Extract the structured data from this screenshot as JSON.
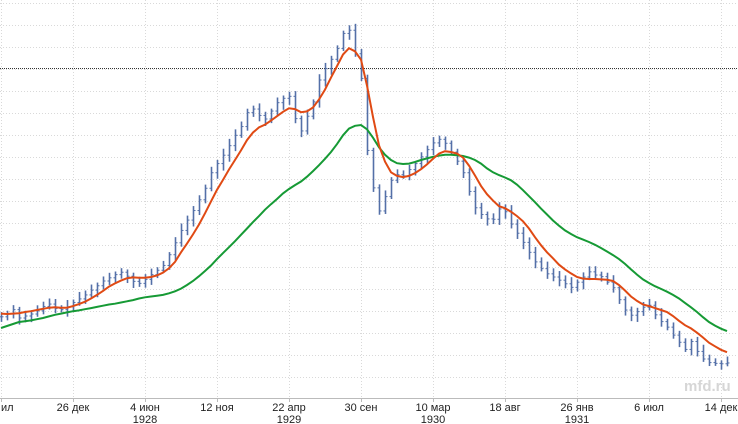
{
  "watermark": "mfd.ru",
  "chart_data": {
    "type": "line",
    "title": "",
    "xlabel": "",
    "ylabel": "",
    "grid": true,
    "legend": "none",
    "x_ticks": [
      {
        "label": "ил",
        "year": "",
        "index": 0
      },
      {
        "label": "26 дек",
        "year": "",
        "index": 12
      },
      {
        "label": "4 июн",
        "year": "1928",
        "index": 24
      },
      {
        "label": "12 ноя",
        "year": "",
        "index": 36
      },
      {
        "label": "22 апр",
        "year": "1929",
        "index": 48
      },
      {
        "label": "30 сен",
        "year": "",
        "index": 60
      },
      {
        "label": "10 мар",
        "year": "1930",
        "index": 72
      },
      {
        "label": "18 авг",
        "year": "",
        "index": 84
      },
      {
        "label": "26 янв",
        "year": "1931",
        "index": 96
      },
      {
        "label": "6 июл",
        "year": "",
        "index": 108
      },
      {
        "label": "14 дек",
        "year": "",
        "index": 120
      }
    ],
    "y_range": [
      0,
      100
    ],
    "reference_line": 83,
    "price": [
      20.4,
      21.2,
      22.2,
      20.1,
      20.6,
      21.1,
      21.9,
      23.0,
      23.6,
      22.5,
      22.2,
      22.9,
      24.0,
      24.9,
      25.9,
      27.1,
      28.2,
      29.4,
      30.2,
      31.0,
      31.6,
      30.6,
      29.3,
      28.8,
      29.8,
      31.0,
      32.1,
      33.3,
      36.0,
      39.0,
      42.1,
      44.7,
      47.1,
      49.8,
      52.7,
      56.6,
      58.9,
      61.0,
      63.4,
      66.0,
      68.2,
      71.7,
      72.6,
      71.0,
      70.1,
      72.1,
      74.2,
      75.3,
      75.8,
      70.2,
      67.1,
      70.8,
      74.4,
      79.9,
      82.8,
      85.1,
      87.8,
      91.6,
      92.4,
      86.5,
      80.3,
      62.2,
      52.8,
      47.0,
      50.6,
      54.7,
      56.1,
      55.8,
      57.4,
      58.9,
      60.6,
      62.4,
      64.1,
      65.0,
      64.0,
      61.8,
      59.5,
      56.6,
      51.9,
      47.8,
      46.1,
      45.0,
      44.9,
      47.5,
      46.8,
      43.7,
      41.4,
      39.1,
      36.6,
      34.2,
      32.5,
      31.2,
      30.4,
      29.6,
      28.7,
      27.8,
      29.1,
      30.4,
      31.7,
      30.9,
      30.5,
      29.1,
      27.7,
      24.7,
      22.1,
      20.8,
      21.7,
      22.8,
      23.3,
      20.9,
      19.2,
      17.8,
      15.8,
      14.0,
      12.2,
      14.2,
      11.7,
      9.8,
      8.9,
      8.7,
      8.6,
      8.8
    ],
    "series": [
      {
        "values": [
          21.2,
          21.1,
          21.2,
          21.3,
          21.6,
          21.8,
          22.1,
          22.4,
          22.7,
          22.8,
          22.7,
          22.7,
          23.1,
          23.6,
          24.2,
          25.0,
          25.9,
          26.9,
          28.0,
          28.8,
          29.5,
          30.1,
          30.3,
          30.2,
          30.2,
          30.4,
          30.8,
          31.5,
          32.6,
          34.2,
          36.6,
          38.8,
          41.1,
          43.6,
          46.4,
          49.4,
          52.3,
          54.8,
          57.4,
          59.8,
          62.2,
          64.8,
          66.7,
          68.0,
          68.7,
          69.7,
          70.8,
          71.9,
          72.8,
          72.6,
          71.8,
          72.0,
          73.0,
          75.0,
          77.5,
          80.5,
          83.4,
          86.3,
          87.9,
          87.1,
          85.0,
          78.5,
          70.6,
          63.5,
          59.4,
          56.7,
          55.8,
          55.5,
          55.8,
          56.5,
          57.5,
          58.7,
          60.1,
          61.4,
          62.0,
          61.8,
          61.4,
          60.4,
          58.4,
          55.9,
          53.3,
          51.2,
          49.6,
          48.2,
          47.7,
          46.8,
          45.7,
          44.4,
          42.6,
          40.4,
          38.4,
          36.6,
          35.1,
          33.5,
          32.3,
          31.3,
          30.4,
          30.0,
          29.9,
          29.9,
          29.8,
          29.7,
          29.4,
          28.4,
          27.0,
          25.5,
          24.4,
          23.5,
          23.1,
          22.6,
          22.1,
          21.6,
          20.6,
          19.4,
          18.3,
          17.5,
          16.4,
          15.2,
          13.9,
          13.0,
          12.1,
          11.5
        ]
      },
      {
        "values": [
          17.6,
          18.1,
          18.6,
          19.1,
          19.3,
          19.5,
          19.8,
          20.1,
          20.5,
          20.9,
          21.2,
          21.5,
          21.8,
          22.0,
          22.3,
          22.6,
          22.9,
          23.2,
          23.5,
          23.7,
          24.0,
          24.3,
          24.6,
          25.0,
          25.3,
          25.5,
          25.7,
          25.9,
          26.3,
          26.8,
          27.5,
          28.4,
          29.4,
          30.6,
          31.9,
          33.3,
          34.9,
          36.4,
          37.9,
          39.4,
          41.0,
          42.6,
          44.2,
          45.7,
          47.3,
          48.7,
          50.0,
          51.4,
          52.5,
          53.5,
          54.4,
          55.6,
          57.0,
          58.5,
          60.1,
          61.8,
          63.8,
          66.0,
          67.7,
          68.4,
          68.6,
          67.5,
          65.4,
          63.0,
          61.1,
          59.8,
          59.0,
          58.8,
          58.9,
          59.3,
          59.8,
          60.2,
          60.6,
          60.9,
          61.1,
          61.1,
          61.0,
          60.8,
          60.4,
          59.8,
          58.9,
          57.7,
          56.7,
          56.0,
          55.4,
          54.7,
          53.6,
          52.2,
          50.7,
          49.2,
          47.6,
          46.1,
          44.6,
          43.3,
          42.1,
          41.2,
          40.4,
          39.8,
          39.2,
          38.5,
          37.7,
          36.8,
          35.9,
          34.9,
          33.7,
          32.3,
          31.0,
          29.8,
          28.9,
          28.1,
          27.4,
          26.7,
          25.9,
          25.0,
          23.9,
          22.8,
          21.6,
          20.3,
          19.1,
          18.2,
          17.4,
          16.8
        ]
      }
    ],
    "colors": {
      "price": "#5470a8",
      "fast_ma": "#e04a14",
      "slow_ma": "#169a35",
      "grid": "#d9d9d9",
      "reference": "#333333",
      "axis": "#bbbbbb"
    }
  }
}
